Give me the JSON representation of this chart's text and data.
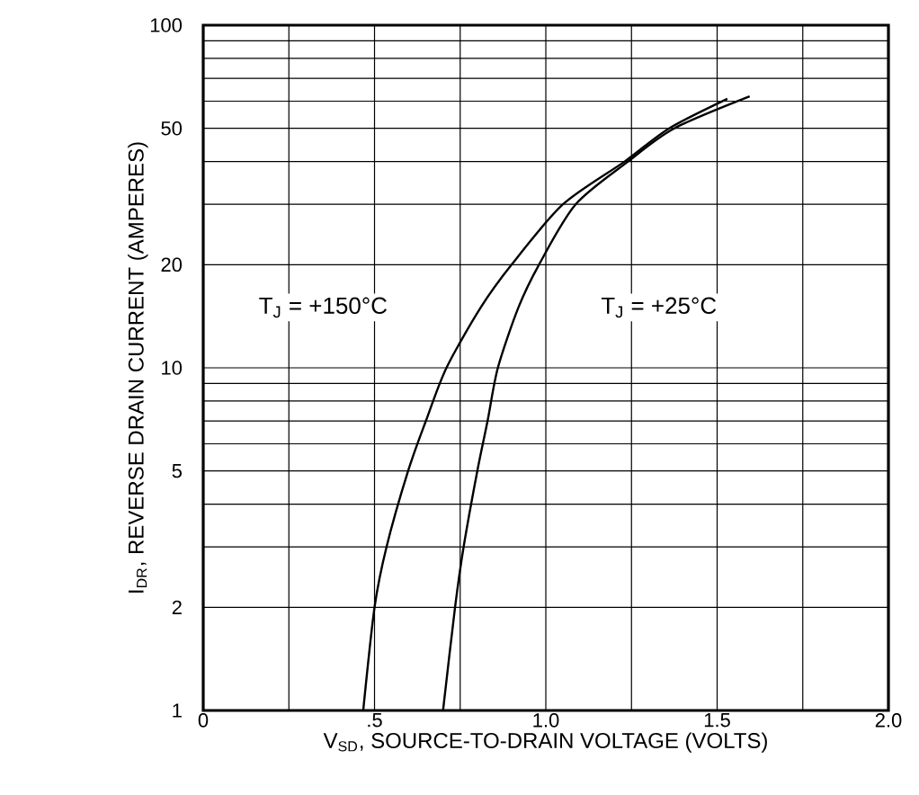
{
  "chart_data": {
    "type": "line",
    "xlabel": "V$_{SD}$, SOURCE-TO-DRAIN VOLTAGE (VOLTS)",
    "ylabel": "I$_{DR}$, REVERSE DRAIN CURRENT (AMPERES)",
    "log": "y",
    "grid": true,
    "marker": "none",
    "line_style": "solid",
    "xlim": [
      0,
      2.0
    ],
    "ylim": [
      1,
      100
    ],
    "xticks": [
      0,
      {
        "value": 0.25,
        "label": null
      },
      {
        "value": 0.5,
        "label": ".5"
      },
      {
        "value": 0.75,
        "label": null
      },
      {
        "value": 1.0,
        "label": "1.0"
      },
      {
        "value": 1.25,
        "label": null
      },
      {
        "value": 1.5,
        "label": "1.5"
      },
      {
        "value": 1.75,
        "label": null
      },
      {
        "value": 2.0,
        "label": "2.0"
      }
    ],
    "yticks": [
      1,
      2,
      {
        "value": 3,
        "label": null
      },
      {
        "value": 4,
        "label": null
      },
      5,
      {
        "value": 6,
        "label": null
      },
      {
        "value": 7,
        "label": null
      },
      {
        "value": 8,
        "label": null
      },
      {
        "value": 9,
        "label": null
      },
      10,
      20,
      {
        "value": 30,
        "label": null
      },
      {
        "value": 40,
        "label": null
      },
      50,
      {
        "value": 60,
        "label": null
      },
      {
        "value": 70,
        "label": null
      },
      {
        "value": 80,
        "label": null
      },
      {
        "value": 90,
        "label": null
      },
      100
    ],
    "series": [
      {
        "color": "#000000",
        "x": [
          0.467,
          0.5,
          0.535,
          0.598,
          0.65,
          0.71,
          0.81,
          0.9,
          1.05,
          1.23,
          1.36,
          1.53
        ],
        "values": [
          1,
          2,
          3,
          5,
          7,
          10,
          15,
          20,
          30,
          40,
          50,
          61
        ]
      },
      {
        "color": "#000000",
        "x": [
          0.7,
          0.735,
          0.76,
          0.8,
          0.83,
          0.86,
          0.92,
          0.98,
          1.087,
          1.24,
          1.375,
          1.595
        ],
        "values": [
          1,
          2,
          3,
          5,
          7,
          10,
          15,
          20,
          30,
          40,
          50,
          62
        ]
      }
    ],
    "annotations": [
      "T$_{J}$ = +150°C",
      "T$_{J}$ = +25°C"
    ]
  }
}
